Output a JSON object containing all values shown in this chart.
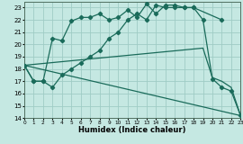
{
  "xlabel": "Humidex (Indice chaleur)",
  "bg_color": "#c5e8e2",
  "grid_color": "#9fccc5",
  "line_color": "#1a6b5a",
  "xlim": [
    0,
    23
  ],
  "ylim": [
    14,
    23.5
  ],
  "xticks": [
    0,
    1,
    2,
    3,
    4,
    5,
    6,
    7,
    8,
    9,
    10,
    11,
    12,
    13,
    14,
    15,
    16,
    17,
    18,
    19,
    20,
    21,
    22,
    23
  ],
  "yticks": [
    14,
    15,
    16,
    17,
    18,
    19,
    20,
    21,
    22,
    23
  ],
  "lines": [
    {
      "x": [
        0,
        1,
        2,
        3,
        4,
        5,
        6,
        7,
        8,
        9,
        10,
        11,
        12,
        13,
        14,
        15,
        16,
        17,
        18,
        21
      ],
      "y": [
        18.3,
        17.0,
        17.0,
        20.5,
        20.3,
        21.9,
        22.2,
        22.2,
        22.5,
        22.0,
        22.2,
        22.8,
        22.2,
        23.3,
        22.5,
        23.2,
        23.2,
        23.0,
        23.0,
        22.0
      ],
      "with_marker": true
    },
    {
      "x": [
        0,
        1,
        2,
        3,
        4,
        5,
        6,
        7,
        8,
        9,
        10,
        11,
        12,
        13,
        14,
        15,
        16,
        17,
        18,
        19,
        20,
        21,
        22,
        23
      ],
      "y": [
        18.3,
        17.0,
        17.0,
        16.5,
        17.5,
        18.0,
        18.5,
        19.0,
        19.5,
        20.5,
        21.0,
        22.0,
        22.5,
        22.0,
        23.2,
        23.0,
        23.0,
        23.0,
        23.0,
        22.0,
        17.2,
        16.5,
        16.2,
        14.2
      ],
      "with_marker": true
    },
    {
      "x": [
        0,
        23
      ],
      "y": [
        18.3,
        14.2
      ],
      "with_marker": false
    },
    {
      "x": [
        0,
        19,
        20,
        21,
        22,
        23
      ],
      "y": [
        18.3,
        19.7,
        17.3,
        17.0,
        16.5,
        14.2
      ],
      "with_marker": false
    }
  ]
}
